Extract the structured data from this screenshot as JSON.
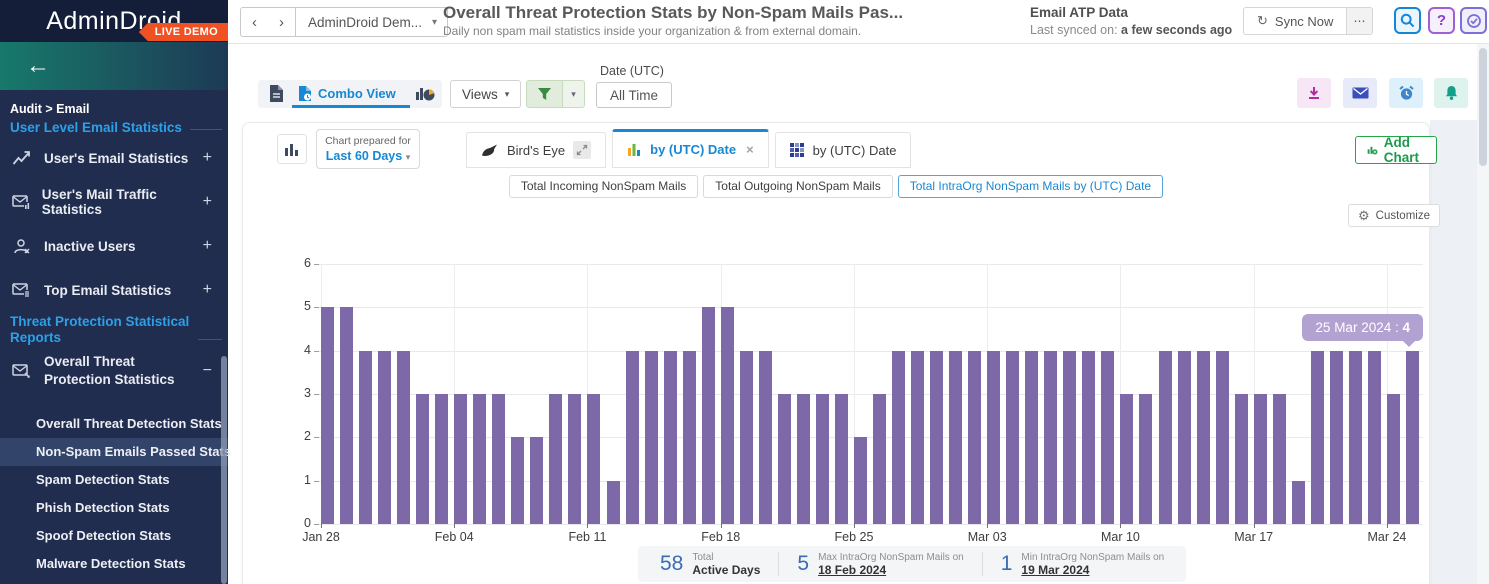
{
  "icons": {
    "back": "←",
    "plus": "+",
    "minus": "−",
    "caret_down": "▾",
    "prev": "‹",
    "next": "›",
    "more": "⋯",
    "close": "×",
    "gear": "⚙",
    "sync": "↻",
    "help": "?"
  },
  "colors": {
    "accent_blue": "#1788d4",
    "bar_purple": "#7d68a8",
    "tooltip_bg": "#b2a2d2",
    "badge_orange": "#f05123",
    "green": "#1b9c4d",
    "sidebar_navy": "#212d4e"
  },
  "sidebar": {
    "logo": "AdminDroid",
    "badge": "LIVE DEMO",
    "breadcrumb": "Audit > Email",
    "section1_title": "User Level Email Statistics",
    "items": [
      {
        "label": "User's Email Statistics"
      },
      {
        "label": "User's Mail Traffic Statistics"
      },
      {
        "label": "Inactive Users"
      },
      {
        "label": "Top Email Statistics"
      }
    ],
    "section2_title": "Threat Protection Statistical Reports",
    "group": {
      "label": "Overall Threat Protection Statistics"
    },
    "subitems": [
      {
        "label": "Overall Threat Detection Stats",
        "active": false
      },
      {
        "label": "Non-Spam Emails Passed Stats",
        "active": true
      },
      {
        "label": "Spam Detection Stats",
        "active": false
      },
      {
        "label": "Phish Detection Stats",
        "active": false
      },
      {
        "label": "Spoof Detection Stats",
        "active": false
      },
      {
        "label": "Malware Detection Stats",
        "active": false
      }
    ]
  },
  "header": {
    "org_selector": "AdminDroid Dem...",
    "title": "Overall Threat Protection Stats by Non-Spam Mails Pas...",
    "subtitle": "Daily non spam mail statistics inside your organization & from external domain.",
    "atp_title": "Email ATP Data",
    "atp_synced_prefix": "Last synced on: ",
    "atp_synced_value": "a few seconds ago",
    "sync_button": "Sync Now"
  },
  "toolbar": {
    "combo_view_label": "Combo View",
    "views_label": "Views",
    "date_label": "Date (UTC)",
    "date_value": "All Time"
  },
  "chartbar": {
    "prepared_line1": "Chart prepared for",
    "prepared_line2": "Last 60 Days",
    "tab_birds_eye": "Bird's Eye",
    "tab_bar_chart": "by (UTC) Date",
    "tab_heatmap": "by (UTC) Date",
    "add_chart": "Add Chart",
    "customize": "Customize"
  },
  "subtabs": [
    {
      "label": "Total Incoming NonSpam Mails",
      "active": false
    },
    {
      "label": "Total Outgoing NonSpam Mails",
      "active": false
    },
    {
      "label": "Total IntraOrg NonSpam Mails by (UTC) Date",
      "active": true
    }
  ],
  "tooltip": {
    "text": "25 Mar 2024 : ",
    "value": "4"
  },
  "stats": [
    {
      "value": "58",
      "line1": "Total",
      "line2": "Active Days",
      "link": false
    },
    {
      "value": "5",
      "line1": "Max IntraOrg NonSpam Mails on",
      "line2": "18 Feb 2024",
      "link": true
    },
    {
      "value": "1",
      "line1": "Min IntraOrg NonSpam Mails on",
      "line2": "19 Mar 2024",
      "link": true
    }
  ],
  "chart_data": {
    "type": "bar",
    "title": "Total IntraOrg NonSpam Mails by (UTC) Date",
    "xlabel": "Date (UTC)",
    "ylabel": "",
    "ylim": [
      0,
      6
    ],
    "yticks": [
      0,
      1,
      2,
      3,
      4,
      5,
      6
    ],
    "grid": true,
    "bar_color": "#7d68a8",
    "x": [
      "Jan 28",
      "Jan 29",
      "Jan 30",
      "Jan 31",
      "Feb 01",
      "Feb 02",
      "Feb 03",
      "Feb 04",
      "Feb 05",
      "Feb 06",
      "Feb 07",
      "Feb 08",
      "Feb 09",
      "Feb 10",
      "Feb 11",
      "Feb 12",
      "Feb 13",
      "Feb 14",
      "Feb 15",
      "Feb 16",
      "Feb 17",
      "Feb 18",
      "Feb 19",
      "Feb 20",
      "Feb 21",
      "Feb 22",
      "Feb 23",
      "Feb 24",
      "Feb 25",
      "Feb 26",
      "Feb 27",
      "Feb 28",
      "Feb 29",
      "Mar 01",
      "Mar 02",
      "Mar 03",
      "Mar 04",
      "Mar 05",
      "Mar 06",
      "Mar 07",
      "Mar 08",
      "Mar 09",
      "Mar 10",
      "Mar 11",
      "Mar 12",
      "Mar 13",
      "Mar 14",
      "Mar 15",
      "Mar 16",
      "Mar 17",
      "Mar 18",
      "Mar 19",
      "Mar 20",
      "Mar 21",
      "Mar 22",
      "Mar 23",
      "Mar 24",
      "Mar 25"
    ],
    "values": [
      5,
      5,
      4,
      4,
      4,
      3,
      3,
      3,
      3,
      3,
      2,
      2,
      3,
      3,
      3,
      1,
      4,
      4,
      4,
      4,
      5,
      5,
      4,
      4,
      3,
      3,
      3,
      3,
      2,
      3,
      4,
      4,
      4,
      4,
      4,
      4,
      4,
      4,
      4,
      4,
      4,
      4,
      3,
      3,
      4,
      4,
      4,
      4,
      3,
      3,
      3,
      1,
      4,
      4,
      4,
      4,
      3,
      4
    ],
    "xtick_labels": [
      "Jan 28",
      "Feb 04",
      "Feb 11",
      "Feb 18",
      "Feb 25",
      "Mar 03",
      "Mar 10",
      "Mar 17",
      "Mar 24"
    ],
    "xtick_indices": [
      0,
      7,
      14,
      21,
      28,
      35,
      42,
      49,
      56
    ]
  }
}
